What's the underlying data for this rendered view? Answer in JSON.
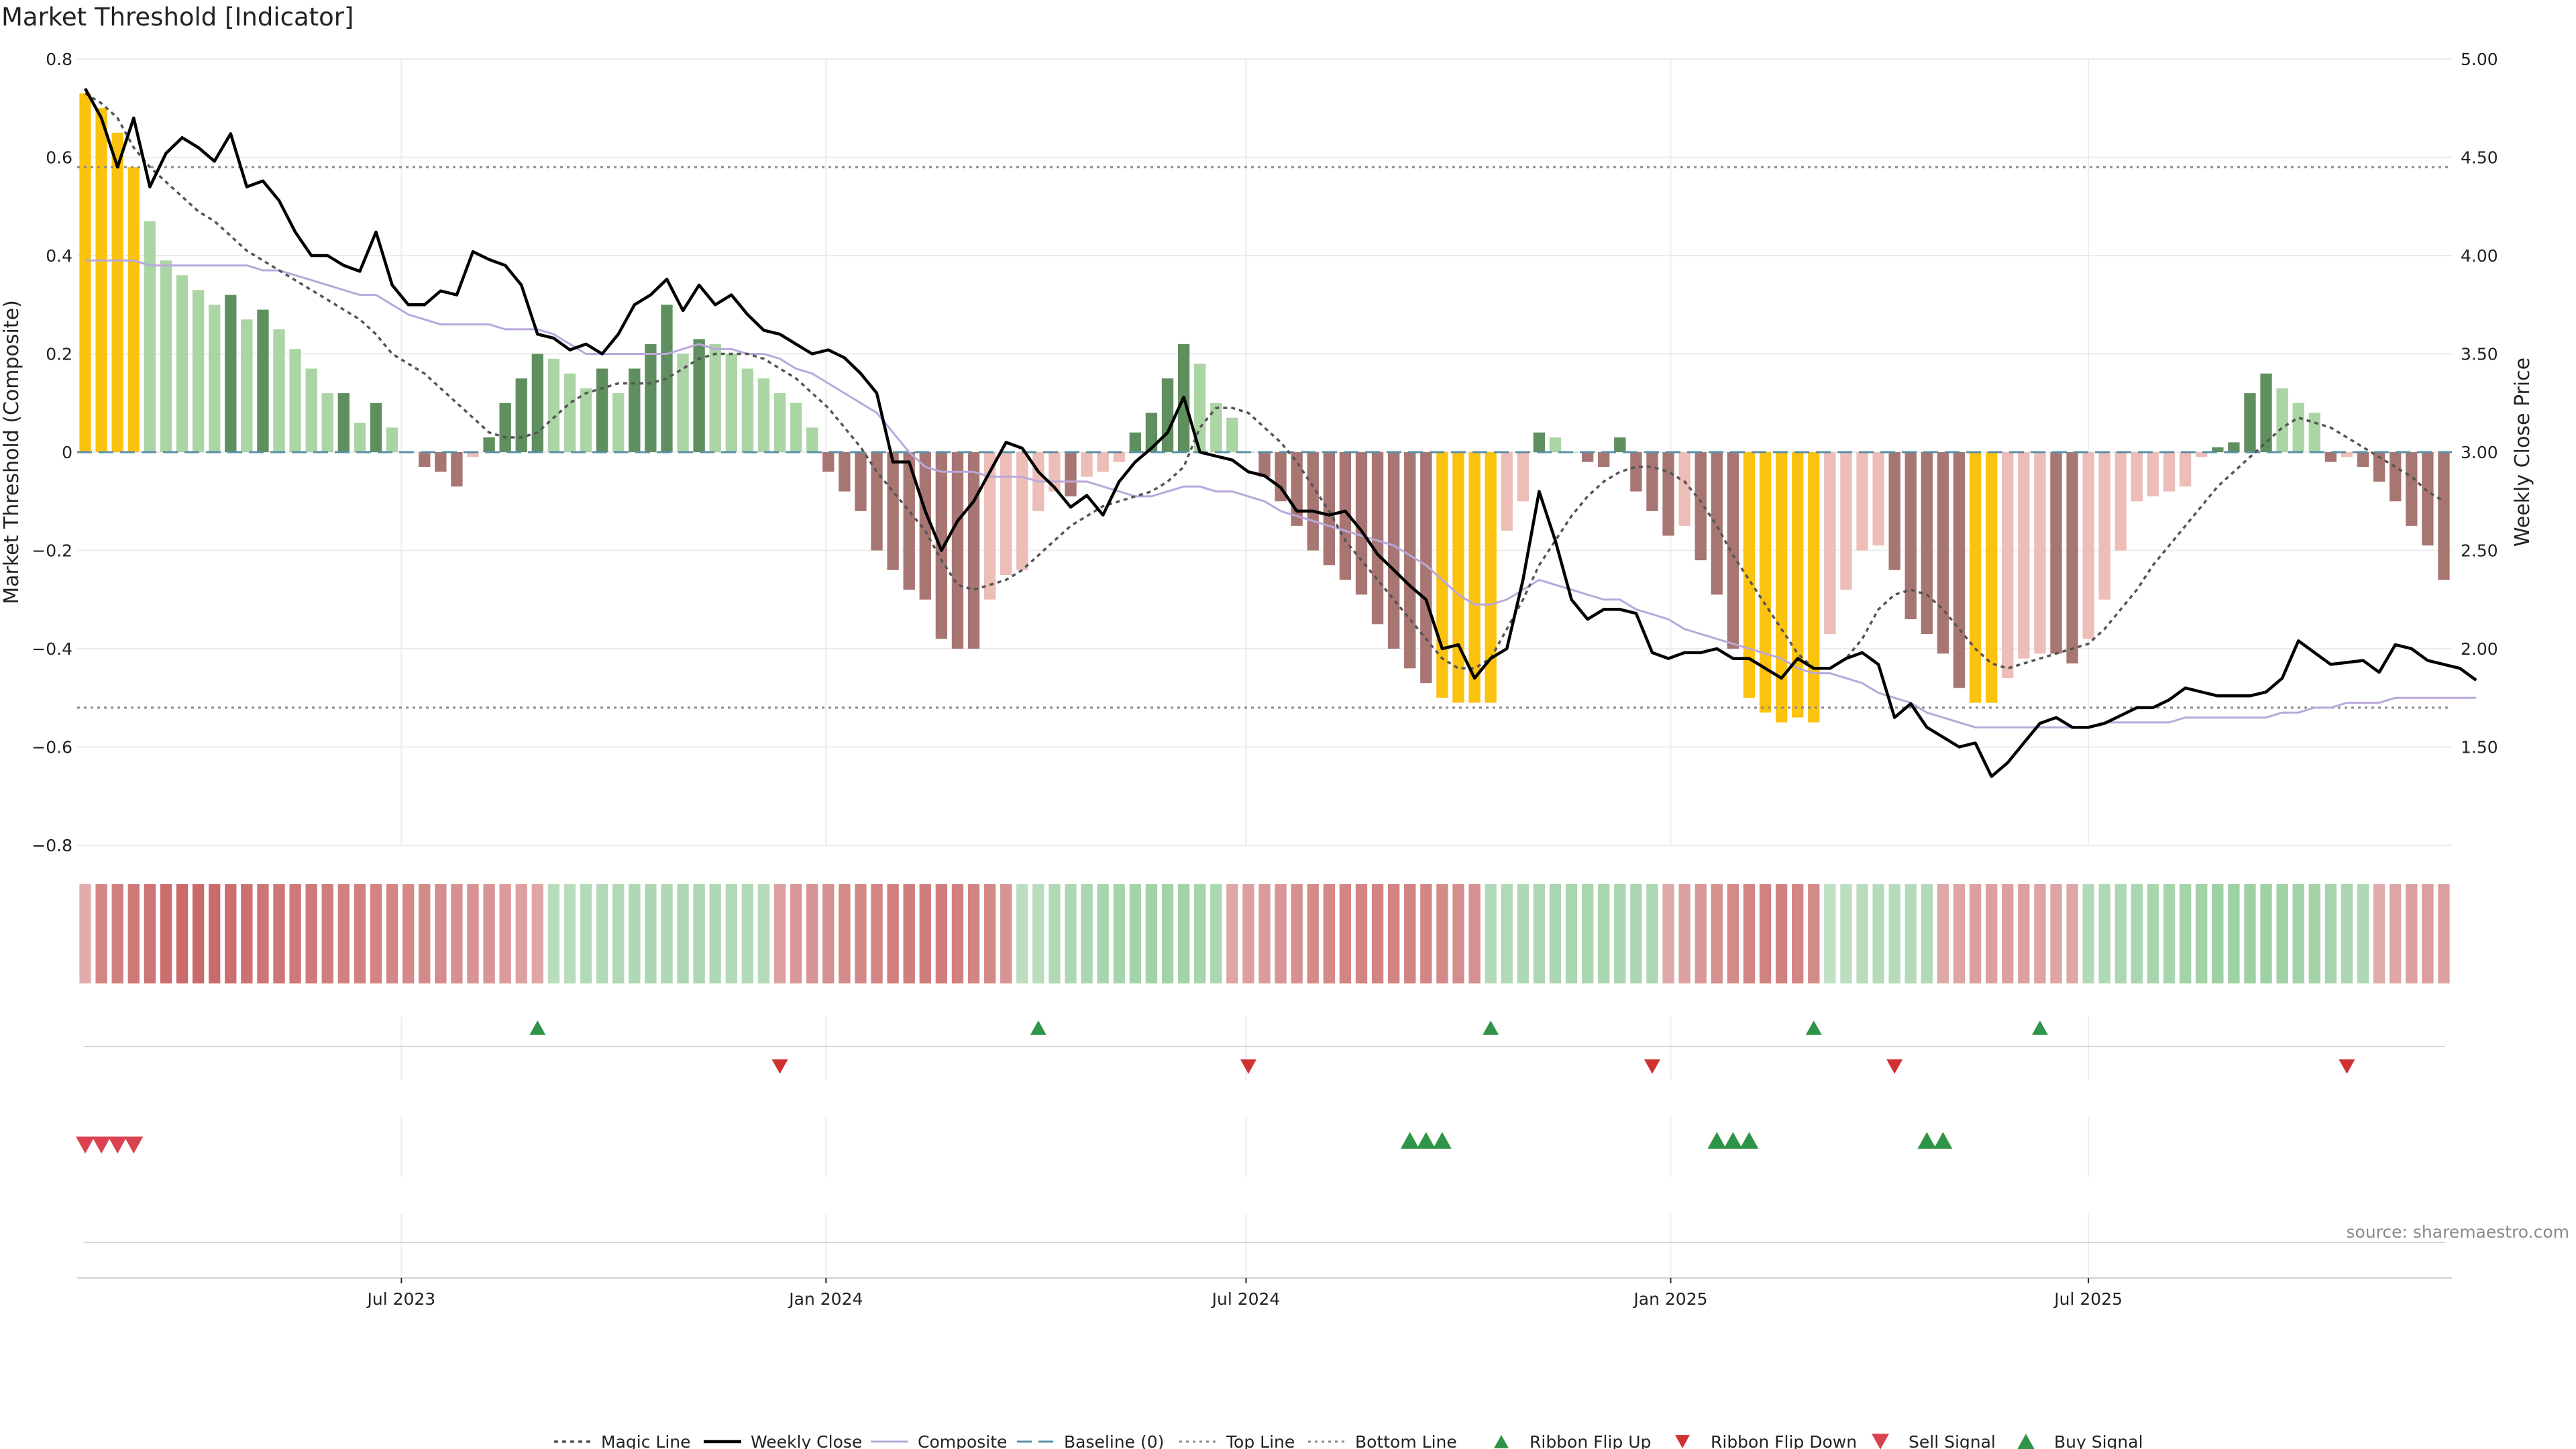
{
  "chart_data": {
    "type": "bar",
    "title": "Market Threshold [Indicator]",
    "ylabel": "Market Threshold (Composite)",
    "y2label": "Weekly Close Price",
    "ylim": [
      -0.8,
      0.8
    ],
    "y2lim": [
      1.0,
      5.0
    ],
    "yticks": [
      "0.8",
      "0.6",
      "0.4",
      "0.2",
      "0",
      "−0.2",
      "−0.4",
      "−0.6",
      "−0.8"
    ],
    "y2ticks": [
      "5.00",
      "4.50",
      "4.00",
      "3.50",
      "3.00",
      "2.50",
      "2.00",
      "1.50"
    ],
    "xticks": [
      "Jul 2023",
      "Jan 2024",
      "Jul 2024",
      "Jan 2025",
      "Jul 2025"
    ],
    "top_line": 0.58,
    "bottom_line": -0.52,
    "weekly_close": [
      4.85,
      4.7,
      4.45,
      4.7,
      4.35,
      4.52,
      4.6,
      4.55,
      4.48,
      4.62,
      4.35,
      4.38,
      4.28,
      4.12,
      4.0,
      4.0,
      3.95,
      3.92,
      4.12,
      3.85,
      3.75,
      3.75,
      3.82,
      3.8,
      4.02,
      3.98,
      3.95,
      3.85,
      3.6,
      3.58,
      3.52,
      3.55,
      3.5,
      3.6,
      3.75,
      3.8,
      3.88,
      3.72,
      3.85,
      3.75,
      3.8,
      3.7,
      3.62,
      3.6,
      3.55,
      3.5,
      3.52,
      3.48,
      3.4,
      3.3,
      2.95,
      2.95,
      2.7,
      2.5,
      2.65,
      2.75,
      2.9,
      3.05,
      3.02,
      2.9,
      2.82,
      2.72,
      2.78,
      2.68,
      2.85,
      2.95,
      3.02,
      3.1,
      3.28,
      3.0,
      2.98,
      2.96,
      2.9,
      2.88,
      2.82,
      2.7,
      2.7,
      2.68,
      2.7,
      2.6,
      2.48,
      2.4,
      2.32,
      2.25,
      2.0,
      2.02,
      1.85,
      1.95,
      2.0,
      2.35,
      2.8,
      2.55,
      2.25,
      2.15,
      2.2,
      2.2,
      2.18,
      1.98,
      1.95,
      1.98,
      1.98,
      2.0,
      1.95,
      1.95,
      1.9,
      1.85,
      1.95,
      1.9,
      1.9,
      1.95,
      1.98,
      1.92,
      1.65,
      1.72,
      1.6,
      1.55,
      1.5,
      1.52,
      1.35,
      1.42,
      1.52,
      1.62,
      1.65,
      1.6,
      1.6,
      1.62,
      1.66,
      1.7,
      1.7,
      1.74,
      1.8,
      1.78,
      1.76,
      1.76,
      1.76,
      1.78,
      1.85,
      2.04,
      1.98,
      1.92,
      1.93,
      1.94,
      1.88,
      2.02,
      2.0,
      1.94,
      1.92,
      1.9,
      1.84
    ],
    "series": [
      {
        "name": "Magic Line",
        "values": [
          0.73,
          0.71,
          0.68,
          0.62,
          0.58,
          0.55,
          0.52,
          0.49,
          0.47,
          0.44,
          0.41,
          0.39,
          0.37,
          0.35,
          0.33,
          0.31,
          0.29,
          0.27,
          0.24,
          0.2,
          0.18,
          0.16,
          0.13,
          0.1,
          0.07,
          0.04,
          0.03,
          0.03,
          0.04,
          0.07,
          0.1,
          0.12,
          0.13,
          0.14,
          0.14,
          0.14,
          0.15,
          0.17,
          0.19,
          0.2,
          0.2,
          0.2,
          0.19,
          0.17,
          0.15,
          0.12,
          0.09,
          0.05,
          0.01,
          -0.04,
          -0.08,
          -0.12,
          -0.16,
          -0.22,
          -0.27,
          -0.28,
          -0.27,
          -0.26,
          -0.24,
          -0.21,
          -0.18,
          -0.15,
          -0.13,
          -0.11,
          -0.1,
          -0.09,
          -0.08,
          -0.06,
          -0.03,
          0.05,
          0.09,
          0.09,
          0.08,
          0.05,
          0.02,
          -0.02,
          -0.07,
          -0.12,
          -0.18,
          -0.22,
          -0.26,
          -0.3,
          -0.34,
          -0.38,
          -0.42,
          -0.44,
          -0.44,
          -0.42,
          -0.36,
          -0.3,
          -0.23,
          -0.18,
          -0.13,
          -0.09,
          -0.06,
          -0.04,
          -0.03,
          -0.03,
          -0.04,
          -0.06,
          -0.1,
          -0.15,
          -0.21,
          -0.26,
          -0.31,
          -0.36,
          -0.41,
          -0.44,
          -0.44,
          -0.42,
          -0.38,
          -0.32,
          -0.29,
          -0.28,
          -0.29,
          -0.32,
          -0.36,
          -0.4,
          -0.43,
          -0.44,
          -0.43,
          -0.42,
          -0.41,
          -0.4,
          -0.39,
          -0.36,
          -0.32,
          -0.28,
          -0.23,
          -0.19,
          -0.15,
          -0.11,
          -0.07,
          -0.04,
          -0.01,
          0.02,
          0.05,
          0.07,
          0.06,
          0.05,
          0.03,
          0.01,
          -0.01,
          -0.03,
          -0.05,
          -0.08,
          -0.1
        ]
      },
      {
        "name": "Weekly Close",
        "values": []
      },
      {
        "name": "Composite",
        "values": [
          0.39,
          0.39,
          0.39,
          0.39,
          0.38,
          0.38,
          0.38,
          0.38,
          0.38,
          0.38,
          0.38,
          0.37,
          0.37,
          0.36,
          0.35,
          0.34,
          0.33,
          0.32,
          0.32,
          0.3,
          0.28,
          0.27,
          0.26,
          0.26,
          0.26,
          0.26,
          0.25,
          0.25,
          0.25,
          0.24,
          0.22,
          0.2,
          0.2,
          0.2,
          0.2,
          0.2,
          0.2,
          0.21,
          0.22,
          0.21,
          0.21,
          0.2,
          0.2,
          0.19,
          0.17,
          0.16,
          0.14,
          0.12,
          0.1,
          0.08,
          0.04,
          0.0,
          -0.03,
          -0.04,
          -0.04,
          -0.04,
          -0.05,
          -0.05,
          -0.05,
          -0.06,
          -0.06,
          -0.06,
          -0.06,
          -0.07,
          -0.08,
          -0.09,
          -0.09,
          -0.08,
          -0.07,
          -0.07,
          -0.08,
          -0.08,
          -0.09,
          -0.1,
          -0.12,
          -0.13,
          -0.14,
          -0.15,
          -0.16,
          -0.17,
          -0.18,
          -0.19,
          -0.21,
          -0.23,
          -0.26,
          -0.29,
          -0.31,
          -0.31,
          -0.3,
          -0.28,
          -0.26,
          -0.27,
          -0.28,
          -0.29,
          -0.3,
          -0.3,
          -0.32,
          -0.33,
          -0.34,
          -0.36,
          -0.37,
          -0.38,
          -0.39,
          -0.4,
          -0.41,
          -0.42,
          -0.44,
          -0.45,
          -0.45,
          -0.46,
          -0.47,
          -0.49,
          -0.5,
          -0.51,
          -0.53,
          -0.54,
          -0.55,
          -0.56,
          -0.56,
          -0.56,
          -0.56,
          -0.56,
          -0.56,
          -0.56,
          -0.56,
          -0.55,
          -0.55,
          -0.55,
          -0.55,
          -0.55,
          -0.54,
          -0.54,
          -0.54,
          -0.54,
          -0.54,
          -0.54,
          -0.53,
          -0.53,
          -0.52,
          -0.52,
          -0.51,
          -0.51,
          -0.51,
          -0.5,
          -0.5,
          -0.5,
          -0.5,
          -0.5,
          -0.5
        ]
      },
      {
        "name": "Baseline (0)",
        "values": []
      },
      {
        "name": "Top Line",
        "values": []
      },
      {
        "name": "Bottom Line",
        "values": []
      }
    ],
    "composite_bars": [
      0.73,
      0.7,
      0.65,
      0.58,
      0.47,
      0.39,
      0.36,
      0.33,
      0.3,
      0.32,
      0.27,
      0.29,
      0.25,
      0.21,
      0.17,
      0.12,
      0.12,
      0.06,
      0.1,
      0.05,
      0.0,
      -0.03,
      -0.04,
      -0.07,
      -0.01,
      0.03,
      0.1,
      0.15,
      0.2,
      0.19,
      0.16,
      0.13,
      0.17,
      0.12,
      0.17,
      0.22,
      0.3,
      0.2,
      0.23,
      0.22,
      0.2,
      0.17,
      0.15,
      0.12,
      0.1,
      0.05,
      -0.04,
      -0.08,
      -0.12,
      -0.2,
      -0.24,
      -0.28,
      -0.3,
      -0.38,
      -0.4,
      -0.4,
      -0.3,
      -0.25,
      -0.24,
      -0.12,
      -0.08,
      -0.09,
      -0.05,
      -0.04,
      -0.02,
      0.04,
      0.08,
      0.15,
      0.22,
      0.18,
      0.1,
      0.07,
      0.0,
      -0.05,
      -0.1,
      -0.15,
      -0.2,
      -0.23,
      -0.26,
      -0.29,
      -0.35,
      -0.4,
      -0.44,
      -0.47,
      -0.5,
      -0.51,
      -0.51,
      -0.51,
      -0.16,
      -0.1,
      0.04,
      0.03,
      0.0,
      -0.02,
      -0.03,
      0.03,
      -0.08,
      -0.12,
      -0.17,
      -0.15,
      -0.22,
      -0.29,
      -0.4,
      -0.5,
      -0.53,
      -0.55,
      -0.54,
      -0.55,
      -0.37,
      -0.28,
      -0.2,
      -0.19,
      -0.24,
      -0.34,
      -0.37,
      -0.41,
      -0.48,
      -0.51,
      -0.51,
      -0.46,
      -0.42,
      -0.41,
      -0.41,
      -0.43,
      -0.38,
      -0.3,
      -0.2,
      -0.1,
      -0.09,
      -0.08,
      -0.07,
      -0.01,
      0.01,
      0.02,
      0.12,
      0.16,
      0.13,
      0.1,
      0.08,
      -0.02,
      -0.01,
      -0.03,
      -0.06,
      -0.1,
      -0.15,
      -0.19,
      -0.26
    ],
    "ribbon_values": [
      -0.2,
      -0.55,
      -0.6,
      -0.65,
      -0.7,
      -0.75,
      -0.78,
      -0.78,
      -0.78,
      -0.75,
      -0.72,
      -0.7,
      -0.68,
      -0.66,
      -0.64,
      -0.62,
      -0.6,
      -0.58,
      -0.56,
      -0.54,
      -0.52,
      -0.5,
      -0.48,
      -0.45,
      -0.42,
      -0.4,
      -0.35,
      -0.3,
      -0.25,
      0.3,
      0.3,
      0.35,
      0.35,
      0.38,
      0.4,
      0.42,
      0.4,
      0.42,
      0.43,
      0.4,
      0.38,
      0.36,
      0.34,
      -0.3,
      -0.38,
      -0.42,
      -0.45,
      -0.5,
      -0.52,
      -0.55,
      -0.6,
      -0.62,
      -0.62,
      -0.62,
      -0.6,
      -0.55,
      -0.5,
      -0.42,
      0.25,
      0.3,
      0.38,
      0.42,
      0.45,
      0.48,
      0.5,
      0.52,
      0.55,
      0.55,
      0.55,
      0.5,
      0.45,
      -0.25,
      -0.3,
      -0.35,
      -0.4,
      -0.45,
      -0.5,
      -0.52,
      -0.55,
      -0.56,
      -0.56,
      -0.56,
      -0.55,
      -0.54,
      -0.5,
      -0.48,
      -0.45,
      0.35,
      0.38,
      0.4,
      0.42,
      0.44,
      0.45,
      0.46,
      0.46,
      0.45,
      0.44,
      0.42,
      -0.22,
      -0.3,
      -0.38,
      -0.45,
      -0.5,
      -0.55,
      -0.58,
      -0.58,
      -0.55,
      -0.5,
      0.2,
      0.25,
      0.3,
      0.32,
      0.33,
      0.34,
      0.35,
      -0.22,
      -0.28,
      -0.3,
      -0.3,
      -0.3,
      -0.3,
      -0.28,
      -0.26,
      -0.25,
      0.35,
      0.4,
      0.42,
      0.45,
      0.48,
      0.5,
      0.52,
      0.55,
      0.58,
      0.6,
      0.6,
      0.58,
      0.56,
      0.54,
      0.52,
      0.5,
      0.45,
      0.4,
      -0.2,
      -0.25,
      -0.3,
      -0.32,
      -0.3
    ],
    "ribbon_flip_up": [
      28,
      59,
      87,
      107,
      121
    ],
    "ribbon_flip_down": [
      43,
      72,
      97,
      112,
      140
    ],
    "sell_signal": [
      0,
      1,
      2,
      3
    ],
    "buy_signal": [
      82,
      83,
      84,
      101,
      102,
      103,
      114,
      115
    ],
    "x_start": "2023-02-14",
    "x_step_days": 7,
    "xtick_dates": [
      "2023-07-01",
      "2024-01-01",
      "2024-07-01",
      "2025-01-01",
      "2025-07-01"
    ],
    "legend_placement": "bottom-center",
    "legend": [
      "Magic Line",
      "Weekly Close",
      "Composite",
      "Baseline (0)",
      "Top Line",
      "Bottom Line",
      "Ribbon Flip Up",
      "Ribbon Flip Down",
      "Sell Signal",
      "Buy Signal"
    ],
    "source": "source: sharemaestro.com",
    "colors": {
      "extreme": "#fbc20e",
      "strong_pos": "#5f8f5e",
      "weak_pos": "#abd5a4",
      "strong_neg": "#a87672",
      "weak_neg": "#edbdb8",
      "magic": "#555555",
      "close": "#000000",
      "composite": "#b9a8dc",
      "baseline": "#5a8fa8",
      "flip_up": "#2e9447",
      "flip_down": "#d03232",
      "sell": "#d9434f",
      "buy": "#2e9447"
    },
    "grid": true
  }
}
